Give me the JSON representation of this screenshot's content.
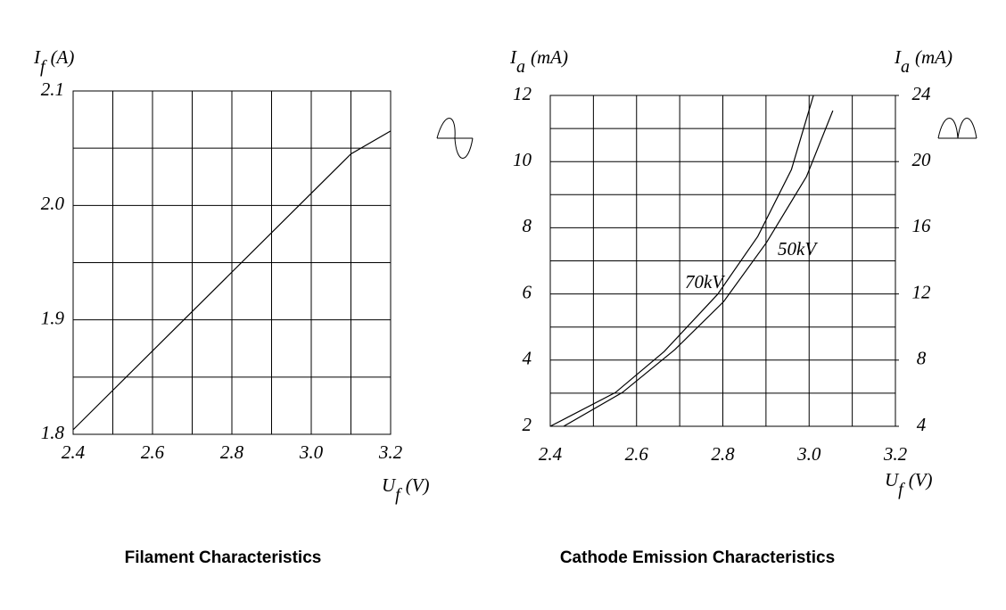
{
  "chart_data": [
    {
      "type": "line",
      "title": "Filament Characteristics",
      "x_label": [
        "U",
        "f",
        "(V)"
      ],
      "y_label": [
        "I",
        "f",
        "(A)"
      ],
      "xlim": [
        2.4,
        3.2
      ],
      "xticks": [
        2.4,
        2.6,
        2.8,
        {
          "value": 3,
          "label": "3.0"
        },
        3.2
      ],
      "xminor": [
        2.5,
        2.7,
        2.9,
        3.1
      ],
      "ylim": [
        1.8,
        2.1
      ],
      "yticks": [
        1.8,
        1.9,
        {
          "value": 2,
          "label": "2.0"
        },
        2.1
      ],
      "yminor": [
        1.85,
        1.95,
        2.05
      ],
      "grid": true,
      "series": [
        {
          "color": "#000000",
          "x": [
            2.4,
            3.1,
            3.2
          ],
          "values": [
            1.804,
            2.045,
            2.065
          ]
        }
      ]
    },
    {
      "type": "line",
      "title": "Cathode Emission Characteristics",
      "x_label": [
        "U",
        "f",
        "(V)"
      ],
      "y_label": [
        "I",
        "a",
        "(mA)"
      ],
      "y2_label": [
        "I",
        "a",
        "(mA)"
      ],
      "xlim": [
        2.4,
        3.2
      ],
      "xticks": [
        2.4,
        2.6,
        2.8,
        {
          "value": 3,
          "label": "3.0"
        },
        3.2
      ],
      "xminor": [
        2.5,
        2.7,
        2.9,
        3.1
      ],
      "ylim": [
        2,
        12
      ],
      "yticks": [
        2,
        4,
        6,
        8,
        10,
        12
      ],
      "yminor": [
        3,
        5,
        7,
        9,
        11
      ],
      "y2lim": [
        4,
        24
      ],
      "y2ticks": [
        4,
        8,
        12,
        16,
        20,
        24
      ],
      "grid": true,
      "series": [
        {
          "name": "70kV",
          "color": "#000000",
          "x": [
            2.4,
            2.551,
            2.664,
            2.788,
            2.881,
            2.959,
            3.01
          ],
          "values": [
            2,
            3.02,
            4.26,
            5.99,
            7.74,
            9.76,
            12
          ]
        },
        {
          "name": "50kV",
          "color": "#000000",
          "x": [
            2.431,
            2.567,
            2.689,
            2.802,
            2.901,
            2.994,
            3.055
          ],
          "values": [
            2,
            3.02,
            4.32,
            5.77,
            7.55,
            9.55,
            11.54
          ]
        }
      ]
    }
  ]
}
